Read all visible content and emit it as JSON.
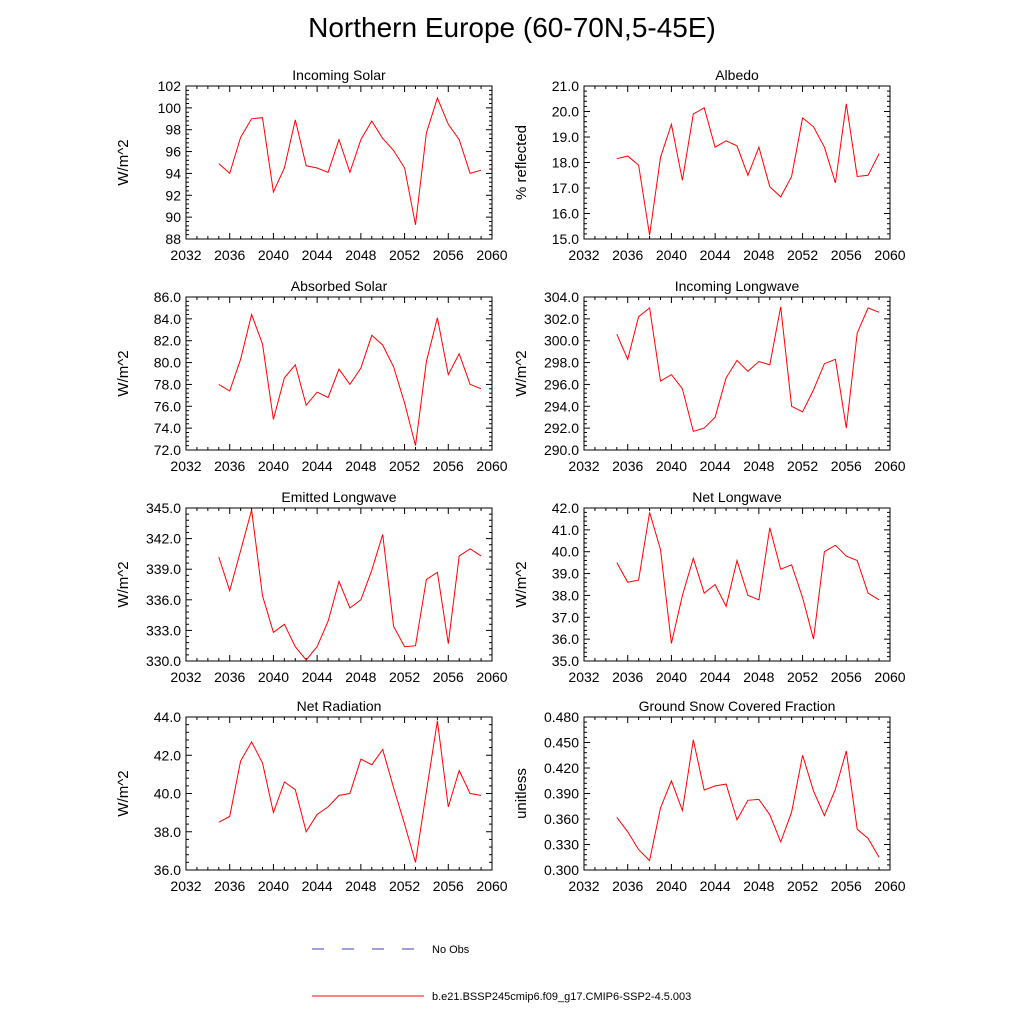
{
  "title": "Northern Europe (60-70N,5-45E)",
  "x_years": [
    2035,
    2036,
    2037,
    2038,
    2039,
    2040,
    2041,
    2042,
    2043,
    2044,
    2045,
    2046,
    2047,
    2048,
    2049,
    2050,
    2051,
    2052,
    2053,
    2054,
    2055,
    2056,
    2057,
    2058,
    2059
  ],
  "x_ticks": [
    2032,
    2036,
    2040,
    2044,
    2048,
    2052,
    2056,
    2060
  ],
  "xlim": [
    2032,
    2060
  ],
  "series_color": "#ff0000",
  "obs_color": "#4040c0",
  "legend": {
    "obs_label": "No Obs",
    "model_label": "b.e21.BSSP245cmip6.f09_g17.CMIP6-SSP2-4.5.003"
  },
  "chart_data": [
    {
      "type": "line",
      "title": "Incoming Solar",
      "ylabel": "W/m^2",
      "ylim": [
        88,
        102
      ],
      "yticks": [
        "88",
        "90",
        "92",
        "94",
        "96",
        "98",
        "100",
        "102"
      ],
      "values": [
        94.9,
        94.0,
        97.3,
        99.0,
        99.1,
        92.3,
        94.5,
        98.9,
        94.7,
        94.5,
        94.1,
        97.1,
        94.1,
        97.1,
        98.8,
        97.2,
        96.1,
        94.5,
        89.3,
        97.7,
        100.9,
        98.5,
        97.1,
        94.0,
        94.3
      ]
    },
    {
      "type": "line",
      "title": "Albedo",
      "ylabel": "% reflected",
      "ylim": [
        15.0,
        21.0
      ],
      "yticks": [
        "15.0",
        "16.0",
        "17.0",
        "18.0",
        "19.0",
        "20.0",
        "21.0"
      ],
      "values": [
        18.15,
        18.25,
        17.9,
        15.15,
        18.2,
        19.5,
        17.3,
        19.9,
        20.15,
        18.6,
        18.85,
        18.65,
        17.5,
        18.6,
        17.05,
        16.65,
        17.45,
        19.75,
        19.4,
        18.6,
        17.2,
        20.3,
        17.45,
        17.5,
        18.35
      ]
    },
    {
      "type": "line",
      "title": "Absorbed Solar",
      "ylabel": "W/m^2",
      "ylim": [
        72.0,
        86.0
      ],
      "yticks": [
        "72.0",
        "74.0",
        "76.0",
        "78.0",
        "80.0",
        "82.0",
        "84.0",
        "86.0"
      ],
      "values": [
        78.0,
        77.4,
        80.3,
        84.4,
        81.7,
        74.8,
        78.6,
        79.8,
        76.1,
        77.3,
        76.8,
        79.4,
        78.0,
        79.5,
        82.5,
        81.6,
        79.6,
        76.3,
        72.4,
        80.1,
        84.1,
        78.9,
        80.8,
        78.0,
        77.6
      ]
    },
    {
      "type": "line",
      "title": "Incoming Longwave",
      "ylabel": "W/m^2",
      "ylim": [
        290.0,
        304.0
      ],
      "yticks": [
        "290.0",
        "292.0",
        "294.0",
        "296.0",
        "298.0",
        "300.0",
        "302.0",
        "304.0"
      ],
      "values": [
        300.6,
        298.3,
        302.2,
        303.0,
        296.3,
        296.9,
        295.6,
        291.7,
        292.0,
        293.0,
        296.6,
        298.2,
        297.2,
        298.1,
        297.8,
        303.1,
        294.0,
        293.5,
        295.5,
        297.9,
        298.3,
        292.0,
        300.7,
        303.0,
        302.6
      ]
    },
    {
      "type": "line",
      "title": "Emitted Longwave",
      "ylabel": "W/m^2",
      "ylim": [
        330.0,
        345.0
      ],
      "yticks": [
        "330.0",
        "333.0",
        "336.0",
        "339.0",
        "342.0",
        "345.0"
      ],
      "values": [
        340.2,
        336.9,
        340.8,
        344.8,
        336.4,
        332.8,
        333.6,
        331.4,
        330.1,
        331.4,
        333.9,
        337.8,
        335.2,
        336.0,
        338.9,
        342.4,
        333.4,
        331.4,
        331.5,
        338.0,
        338.7,
        331.7,
        340.3,
        341.0,
        340.3
      ]
    },
    {
      "type": "line",
      "title": "Net Longwave",
      "ylabel": "W/m^2",
      "ylim": [
        35.0,
        42.0
      ],
      "yticks": [
        "35.0",
        "36.0",
        "37.0",
        "38.0",
        "39.0",
        "40.0",
        "41.0",
        "42.0"
      ],
      "values": [
        39.5,
        38.6,
        38.7,
        41.8,
        40.1,
        35.8,
        38.0,
        39.7,
        38.1,
        38.5,
        37.5,
        39.6,
        38.0,
        37.8,
        41.1,
        39.2,
        39.4,
        37.9,
        36.0,
        40.0,
        40.3,
        39.8,
        39.6,
        38.1,
        37.8
      ]
    },
    {
      "type": "line",
      "title": "Net Radiation",
      "ylabel": "W/m^2",
      "ylim": [
        36.0,
        44.0
      ],
      "yticks": [
        "36.0",
        "38.0",
        "40.0",
        "42.0",
        "44.0"
      ],
      "values": [
        38.5,
        38.8,
        41.7,
        42.7,
        41.6,
        39.0,
        40.6,
        40.2,
        38.0,
        38.9,
        39.3,
        39.9,
        40.0,
        41.8,
        41.5,
        42.3,
        40.3,
        38.4,
        36.4,
        40.1,
        43.8,
        39.3,
        41.2,
        40.0,
        39.9
      ]
    },
    {
      "type": "line",
      "title": "Ground Snow Covered Fraction",
      "ylabel": "unitless",
      "ylim": [
        0.3,
        0.48
      ],
      "yticks": [
        "0.300",
        "0.330",
        "0.360",
        "0.390",
        "0.420",
        "0.450",
        "0.480"
      ],
      "values": [
        0.362,
        0.345,
        0.324,
        0.311,
        0.373,
        0.405,
        0.37,
        0.453,
        0.394,
        0.399,
        0.401,
        0.359,
        0.382,
        0.383,
        0.365,
        0.333,
        0.368,
        0.435,
        0.393,
        0.364,
        0.395,
        0.44,
        0.348,
        0.337,
        0.315
      ]
    }
  ]
}
